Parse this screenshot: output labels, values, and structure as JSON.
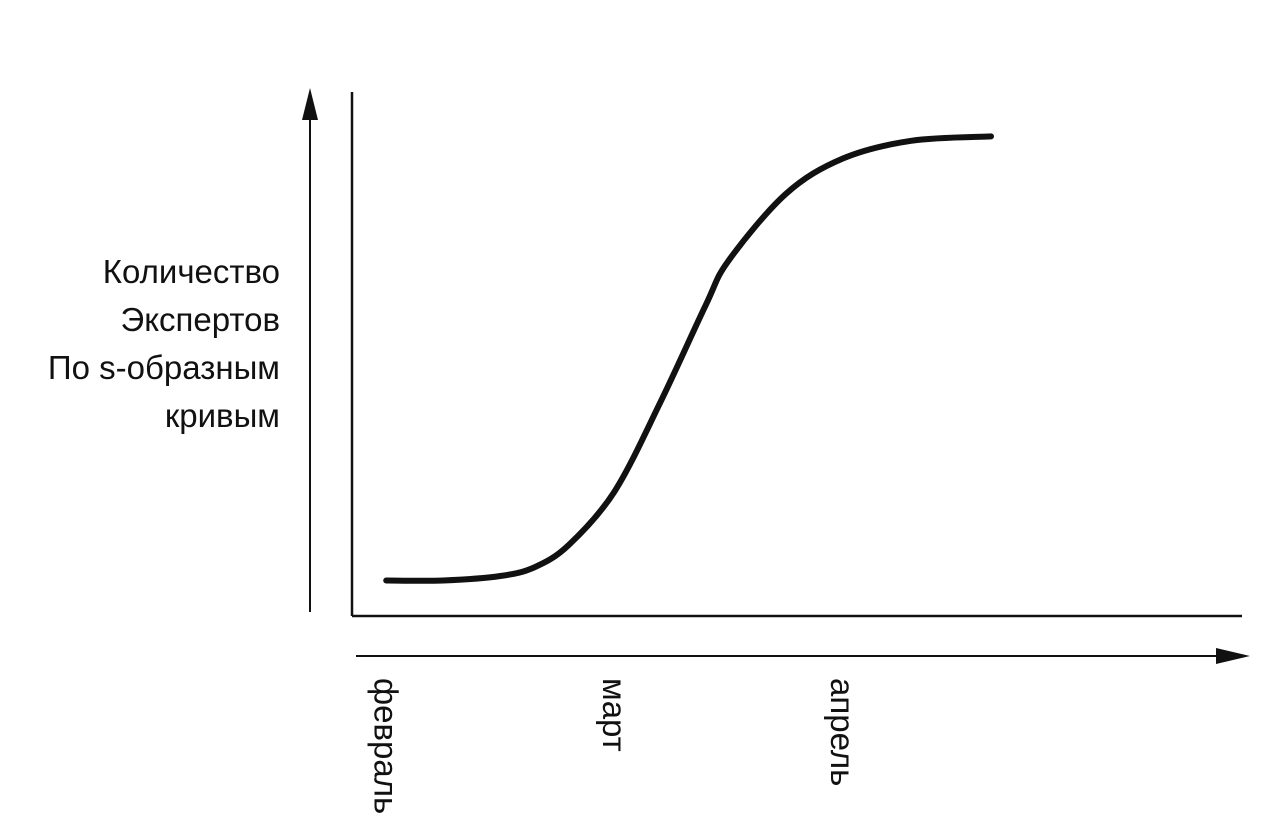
{
  "chart_data": {
    "type": "line",
    "title": "",
    "xlabel": "",
    "ylabel_lines": [
      "Количество",
      "Экспертов",
      "По s-образным",
      "кривым"
    ],
    "categories": [
      "февраль",
      "март",
      "апрель"
    ],
    "series": [
      {
        "x": [
          0,
          0.25,
          0.5,
          0.65,
          0.8,
          1.0,
          1.2,
          1.4,
          1.5,
          1.75,
          2.0,
          2.3,
          2.65
        ],
        "y": [
          0.0,
          0.0,
          0.01,
          0.03,
          0.08,
          0.2,
          0.4,
          0.62,
          0.72,
          0.87,
          0.95,
          0.99,
          1.0
        ]
      }
    ],
    "xlim": [
      -0.15,
      3.75
    ],
    "ylim": [
      -0.08,
      1.1
    ],
    "grid": false,
    "legend": "none",
    "colors": {
      "line": "#111111",
      "axis": "#111111"
    }
  }
}
